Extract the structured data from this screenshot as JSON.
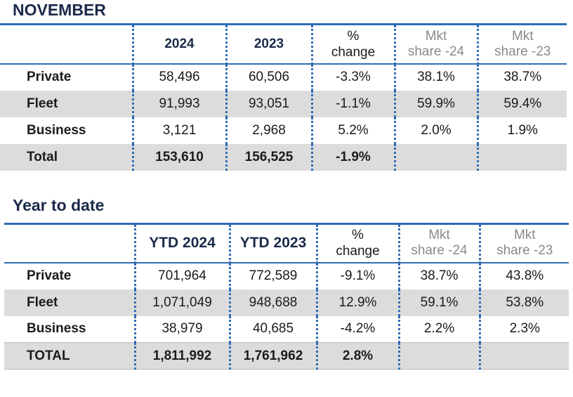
{
  "monthly": {
    "title": "NOVEMBER",
    "headers": {
      "y1": "2024",
      "y2": "2023",
      "change_pct": "%",
      "change_word": "change",
      "mkt1_top": "Mkt",
      "mkt1_bottom": "share -24",
      "mkt2_top": "Mkt",
      "mkt2_bottom": "share -23"
    },
    "rows": [
      {
        "label": "Private",
        "y1": "58,496",
        "y2": "60,506",
        "change": "-3.3%",
        "mkt1": "38.1%",
        "mkt2": "38.7%"
      },
      {
        "label": "Fleet",
        "y1": "91,993",
        "y2": "93,051",
        "change": "-1.1%",
        "mkt1": "59.9%",
        "mkt2": "59.4%"
      },
      {
        "label": "Business",
        "y1": "3,121",
        "y2": "2,968",
        "change": "5.2%",
        "mkt1": "2.0%",
        "mkt2": "1.9%"
      },
      {
        "label": "Total",
        "y1": "153,610",
        "y2": "156,525",
        "change": "-1.9%",
        "mkt1": "",
        "mkt2": ""
      }
    ]
  },
  "ytd": {
    "title": "Year to date",
    "headers": {
      "y1": "YTD 2024",
      "y2": "YTD 2023",
      "change_pct": "%",
      "change_word": "change",
      "mkt1_top": "Mkt",
      "mkt1_bottom": "share -24",
      "mkt2_top": "Mkt",
      "mkt2_bottom": "share -23"
    },
    "rows": [
      {
        "label": "Private",
        "y1": "701,964",
        "y2": "772,589",
        "change": "-9.1%",
        "mkt1": "38.7%",
        "mkt2": "43.8%"
      },
      {
        "label": "Fleet",
        "y1": "1,071,049",
        "y2": "948,688",
        "change": "12.9%",
        "mkt1": "59.1%",
        "mkt2": "53.8%"
      },
      {
        "label": "Business",
        "y1": "38,979",
        "y2": "40,685",
        "change": "-4.2%",
        "mkt1": "2.2%",
        "mkt2": "2.3%"
      },
      {
        "label": "TOTAL",
        "y1": "1,811,992",
        "y2": "1,761,962",
        "change": "2.8%",
        "mkt1": "",
        "mkt2": ""
      }
    ]
  },
  "colors": {
    "title": "#1b2a4a",
    "rule": "#2f6db5",
    "shade": "#dcdcdc",
    "muted": "#8a8a8a"
  }
}
